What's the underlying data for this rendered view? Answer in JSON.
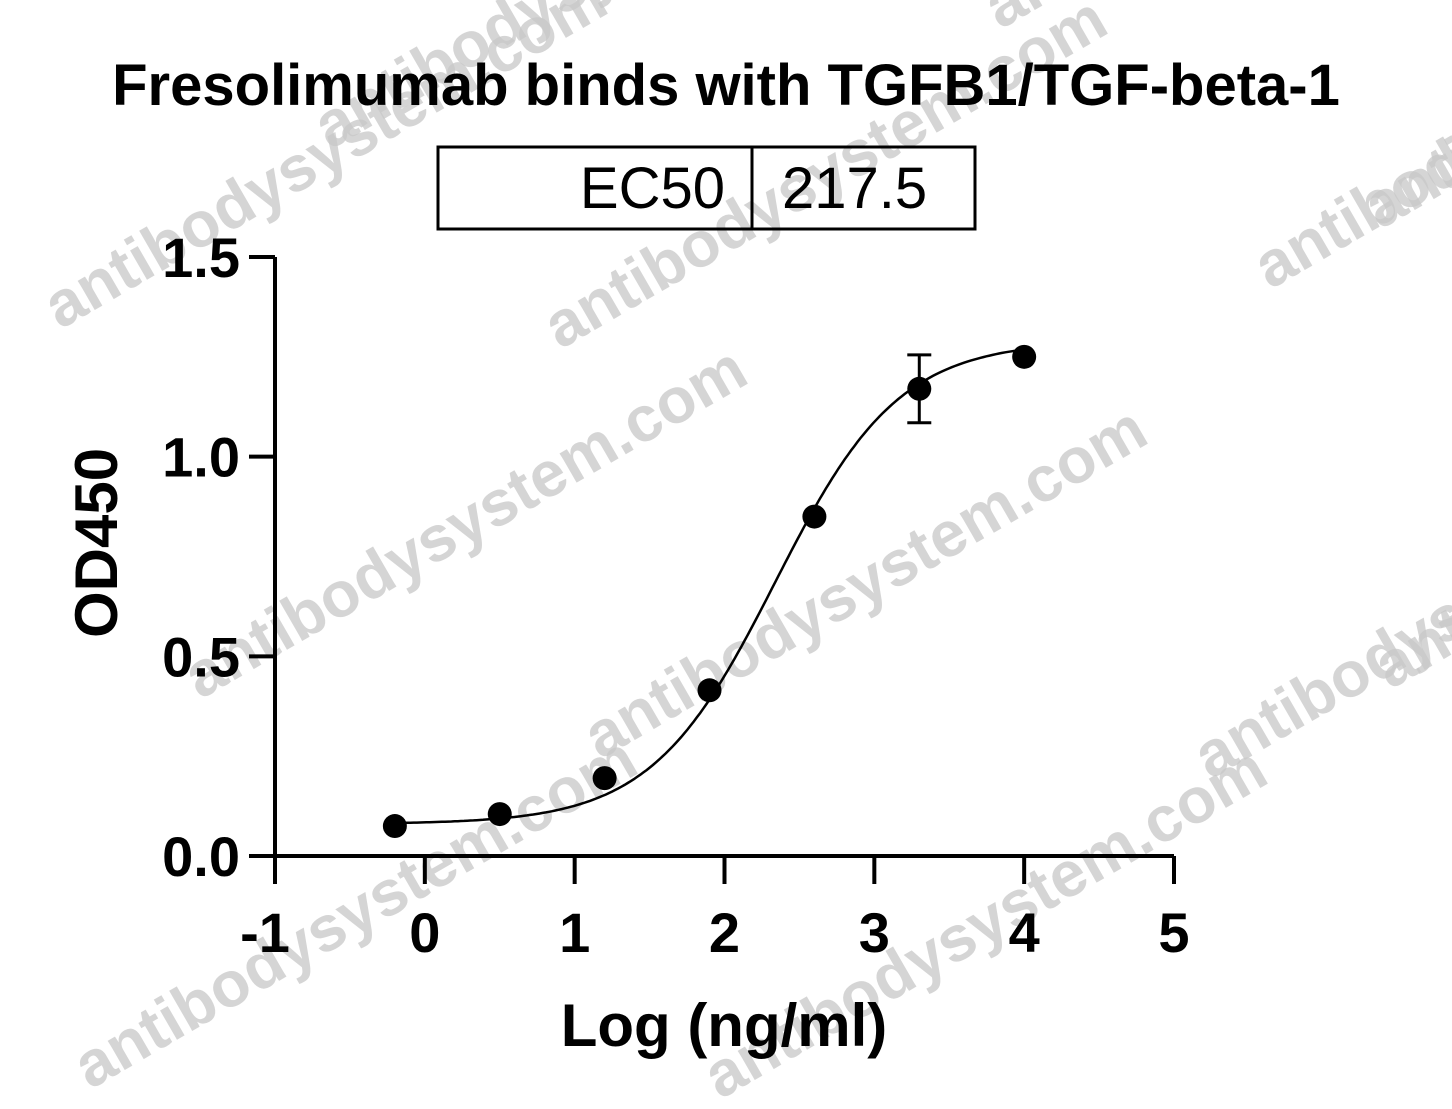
{
  "watermark": "antibodysystem.com",
  "chart_data": {
    "type": "scatter",
    "title": "Fresolimumab binds with TGFB1/TGF-beta-1",
    "xlabel": "Log (ng/ml)",
    "ylabel": "OD450",
    "xlim": [
      -1,
      5
    ],
    "ylim": [
      0,
      1.5
    ],
    "x_ticks": [
      "-1",
      "0",
      "1",
      "2",
      "3",
      "4",
      "5"
    ],
    "y_ticks": [
      "0.0",
      "0.5",
      "1.0",
      "1.5"
    ],
    "fit": "four-parameter logistic curve",
    "ec50_table": {
      "label": "EC50",
      "value": "217.5"
    },
    "points": [
      {
        "x": -0.2,
        "y": 0.075
      },
      {
        "x": 0.5,
        "y": 0.105
      },
      {
        "x": 1.2,
        "y": 0.195
      },
      {
        "x": 1.9,
        "y": 0.415
      },
      {
        "x": 2.6,
        "y": 0.85
      },
      {
        "x": 3.3,
        "y": 1.17,
        "error": 0.085
      },
      {
        "x": 4.0,
        "y": 1.25
      }
    ],
    "colors": {
      "marks": "#000000",
      "watermark": "#c8c8c8"
    }
  }
}
